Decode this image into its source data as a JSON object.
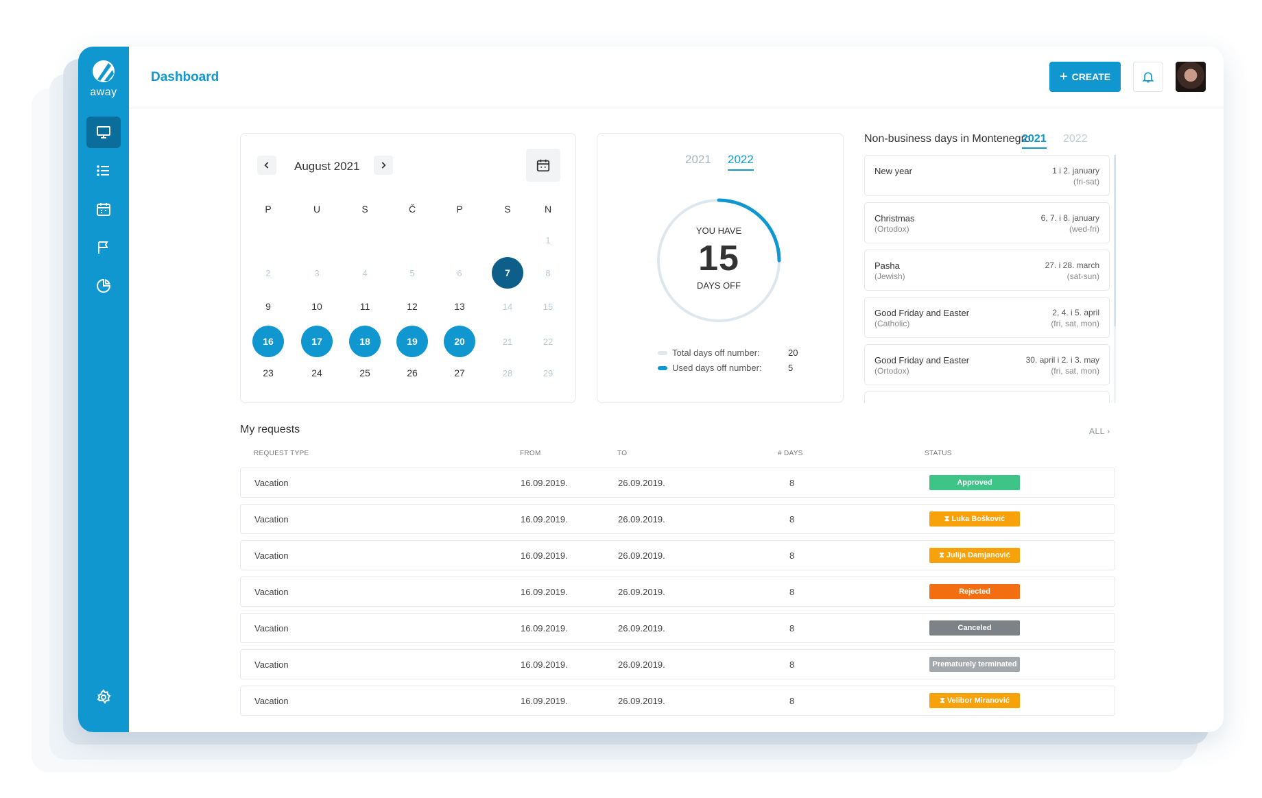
{
  "app": {
    "logo_text": "away",
    "page_title": "Dashboard"
  },
  "sidebar": {
    "items": [
      {
        "name": "dashboard",
        "icon": "monitor-icon",
        "active": true
      },
      {
        "name": "requests",
        "icon": "list-icon",
        "active": false
      },
      {
        "name": "calendar",
        "icon": "calendar-icon",
        "active": false
      },
      {
        "name": "holidays",
        "icon": "flag-icon",
        "active": false
      },
      {
        "name": "reports",
        "icon": "pie-chart-icon",
        "active": false
      }
    ],
    "settings_icon": "gear-icon"
  },
  "header": {
    "create_label": "CREATE",
    "create_icon": "plus-icon",
    "notifications_icon": "bell-icon",
    "avatar": "user-avatar"
  },
  "calendar": {
    "month_label": "August 2021",
    "weekdays": [
      "P",
      "U",
      "S",
      "Č",
      "P",
      "S",
      "N"
    ],
    "weeks": [
      [
        null,
        null,
        null,
        null,
        null,
        null,
        {
          "d": "1",
          "s": "muted"
        }
      ],
      [
        {
          "d": "2",
          "s": "muted"
        },
        {
          "d": "3",
          "s": "muted"
        },
        {
          "d": "4",
          "s": "muted"
        },
        {
          "d": "5",
          "s": "muted"
        },
        {
          "d": "6",
          "s": "muted"
        },
        {
          "d": "7",
          "s": "today"
        },
        {
          "d": "8",
          "s": "muted"
        }
      ],
      [
        {
          "d": "9",
          "s": ""
        },
        {
          "d": "10",
          "s": ""
        },
        {
          "d": "11",
          "s": ""
        },
        {
          "d": "12",
          "s": ""
        },
        {
          "d": "13",
          "s": ""
        },
        {
          "d": "14",
          "s": "muted"
        },
        {
          "d": "15",
          "s": "muted"
        }
      ],
      [
        {
          "d": "16",
          "s": "sel"
        },
        {
          "d": "17",
          "s": "sel"
        },
        {
          "d": "18",
          "s": "sel"
        },
        {
          "d": "19",
          "s": "sel"
        },
        {
          "d": "20",
          "s": "sel"
        },
        {
          "d": "21",
          "s": "muted"
        },
        {
          "d": "22",
          "s": "muted"
        }
      ],
      [
        {
          "d": "23",
          "s": ""
        },
        {
          "d": "24",
          "s": ""
        },
        {
          "d": "25",
          "s": ""
        },
        {
          "d": "26",
          "s": ""
        },
        {
          "d": "27",
          "s": ""
        },
        {
          "d": "28",
          "s": "muted"
        },
        {
          "d": "29",
          "s": "muted"
        }
      ]
    ]
  },
  "days_off": {
    "years": [
      {
        "label": "2021",
        "active": false
      },
      {
        "label": "2022",
        "active": true
      }
    ],
    "you_have": "YOU HAVE",
    "count": "15",
    "days_off_label": "DAYS OFF",
    "used_fraction": 0.25,
    "colors": {
      "total": "#dfe7ee",
      "used": "#1097cf"
    },
    "legend": [
      {
        "label": "Total days off number:",
        "value": "20"
      },
      {
        "label": "Used days off number:",
        "value": "5"
      }
    ]
  },
  "holidays": {
    "title": "Non-business days in Montenegro",
    "years": [
      {
        "label": "2021",
        "active": true
      },
      {
        "label": "2022",
        "active": false
      }
    ],
    "items": [
      {
        "name": "New year",
        "sub": "",
        "date": "1 i 2. january",
        "days": "(fri-sat)"
      },
      {
        "name": "Christmas",
        "sub": "(Ortodox)",
        "date": "6, 7. i 8. january",
        "days": "(wed-fri)"
      },
      {
        "name": "Pasha",
        "sub": "(Jewish)",
        "date": "27. i 28. march",
        "days": "(sat-sun)"
      },
      {
        "name": "Good Friday and Easter",
        "sub": "(Catholic)",
        "date": "2, 4. i 5. april",
        "days": "(fri, sat, mon)"
      },
      {
        "name": "Good Friday and Easter",
        "sub": "(Ortodox)",
        "date": "30. april i 2. i 3. may",
        "days": "(fri, sat, mon)"
      },
      {
        "name": "",
        "sub": "",
        "date": "",
        "days": ""
      }
    ]
  },
  "requests": {
    "title": "My requests",
    "all_label": "ALL ›",
    "columns": [
      "REQUEST TYPE",
      "FROM",
      "TO",
      "# DAYS",
      "STATUS"
    ],
    "rows": [
      {
        "type": "Vacation",
        "from": "16.09.2019.",
        "to": "26.09.2019.",
        "days": "8",
        "status": "Approved",
        "color": "#3ec486"
      },
      {
        "type": "Vacation",
        "from": "16.09.2019.",
        "to": "26.09.2019.",
        "days": "8",
        "status": "⧗ Luka Bošković",
        "color": "#f7a20a"
      },
      {
        "type": "Vacation",
        "from": "16.09.2019.",
        "to": "26.09.2019.",
        "days": "8",
        "status": "⧗ Julija Damjanović",
        "color": "#f7a20a"
      },
      {
        "type": "Vacation",
        "from": "16.09.2019.",
        "to": "26.09.2019.",
        "days": "8",
        "status": "Rejected",
        "color": "#f36e10"
      },
      {
        "type": "Vacation",
        "from": "16.09.2019.",
        "to": "26.09.2019.",
        "days": "8",
        "status": "Canceled",
        "color": "#7d8287"
      },
      {
        "type": "Vacation",
        "from": "16.09.2019.",
        "to": "26.09.2019.",
        "days": "8",
        "status": "Prematurely terminated",
        "color": "#a3a8ad"
      },
      {
        "type": "Vacation",
        "from": "16.09.2019.",
        "to": "26.09.2019.",
        "days": "8",
        "status": "⧗ Velibor Miranović",
        "color": "#f7a20a"
      }
    ]
  }
}
